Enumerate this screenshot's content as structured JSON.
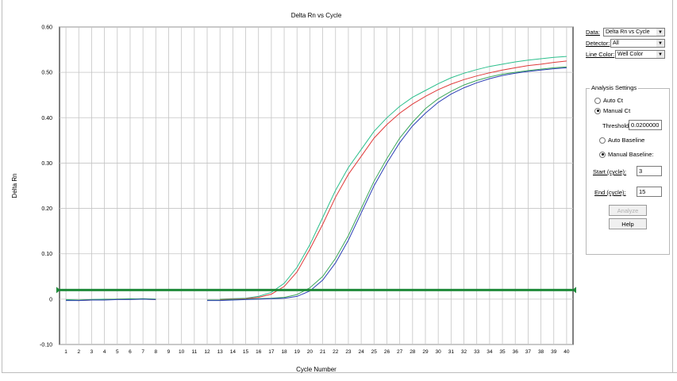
{
  "panel": {
    "data_label": "Data:",
    "data_value": "Delta Rn vs Cycle",
    "detector_label": "Detector:",
    "detector_value": "All",
    "line_color_label": "Line Color:",
    "line_color_value": "Well Color",
    "analysis": {
      "title": "Analysis Settings",
      "auto_ct": "Auto Ct",
      "manual_ct": "Manual Ct",
      "ct_mode": "manual",
      "threshold_label": "Threshold:",
      "threshold_value": "0.0200000",
      "auto_baseline": "Auto Baseline",
      "manual_baseline": "Manual Baseline:",
      "baseline_mode": "manual",
      "start_label": "Start (cycle):",
      "start_value": "3",
      "end_label": "End (cycle):",
      "end_value": "15",
      "analyze_label": "Analyze",
      "analyze_enabled": false,
      "help_label": "Help"
    }
  },
  "chart_data": {
    "type": "line",
    "title": "Delta Rn vs Cycle",
    "xlabel": "Cycle Number",
    "ylabel": "Delta Rn",
    "xlim": [
      0.5,
      40.5
    ],
    "ylim": [
      -0.1,
      0.6
    ],
    "x_ticks": [
      "1",
      "2",
      "3",
      "4",
      "5",
      "6",
      "7",
      "8",
      "9",
      "10",
      "11",
      "12",
      "13",
      "14",
      "15",
      "16",
      "17",
      "18",
      "19",
      "20",
      "21",
      "22",
      "23",
      "24",
      "25",
      "26",
      "27",
      "28",
      "29",
      "30",
      "31",
      "32",
      "33",
      "34",
      "35",
      "36",
      "37",
      "38",
      "39",
      "40"
    ],
    "y_ticks": [
      {
        "value": 0.6,
        "label": "0.60"
      },
      {
        "value": 0.5,
        "label": "0.50"
      },
      {
        "value": 0.4,
        "label": "0.40"
      },
      {
        "value": 0.3,
        "label": "0.30"
      },
      {
        "value": 0.2,
        "label": "0.20"
      },
      {
        "value": 0.1,
        "label": "0.10"
      },
      {
        "value": 0.0,
        "label": "0"
      },
      {
        "value": -0.1,
        "label": "-0.10"
      }
    ],
    "grid": true,
    "threshold": {
      "value": 0.02,
      "color": "#1f8a3a"
    },
    "x": [
      1,
      2,
      3,
      4,
      5,
      6,
      7,
      8,
      9,
      10,
      11,
      12,
      13,
      14,
      15,
      16,
      17,
      18,
      19,
      20,
      21,
      22,
      23,
      24,
      25,
      26,
      27,
      28,
      29,
      30,
      31,
      32,
      33,
      34,
      35,
      36,
      37,
      38,
      39,
      40
    ],
    "series": [
      {
        "color": "#2bbf8c",
        "values": [
          -0.001,
          -0.002,
          -0.001,
          0.0,
          0.0,
          0.001,
          0.0,
          0.0,
          null,
          null,
          null,
          null,
          0.0,
          0.001,
          0.002,
          0.006,
          0.015,
          0.035,
          0.07,
          0.12,
          0.18,
          0.24,
          0.29,
          0.33,
          0.37,
          0.4,
          0.425,
          0.445,
          0.46,
          0.475,
          0.488,
          0.498,
          0.506,
          0.513,
          0.518,
          0.523,
          0.527,
          0.53,
          0.533,
          0.535
        ]
      },
      {
        "color": "#e03a3a",
        "values": [
          -0.002,
          -0.003,
          -0.002,
          -0.001,
          0.0,
          0.0,
          0.0,
          -0.001,
          null,
          null,
          null,
          null,
          -0.001,
          0.0,
          0.001,
          0.004,
          0.011,
          0.028,
          0.06,
          0.11,
          0.165,
          0.225,
          0.275,
          0.315,
          0.355,
          0.385,
          0.41,
          0.43,
          0.447,
          0.462,
          0.474,
          0.484,
          0.492,
          0.499,
          0.505,
          0.51,
          0.515,
          0.518,
          0.522,
          0.525
        ]
      },
      {
        "color": "#3da85a",
        "values": [
          -0.002,
          -0.002,
          -0.001,
          -0.001,
          0.0,
          0.0,
          0.001,
          0.0,
          null,
          null,
          null,
          -0.002,
          -0.002,
          -0.001,
          0.0,
          0.001,
          0.002,
          0.004,
          0.01,
          0.025,
          0.05,
          0.09,
          0.14,
          0.2,
          0.26,
          0.31,
          0.355,
          0.39,
          0.42,
          0.442,
          0.458,
          0.472,
          0.482,
          0.49,
          0.496,
          0.5,
          0.504,
          0.507,
          0.51,
          0.512
        ]
      },
      {
        "color": "#2c3fb5",
        "values": [
          -0.003,
          -0.003,
          -0.002,
          -0.002,
          -0.001,
          -0.001,
          0.0,
          -0.001,
          null,
          null,
          null,
          -0.003,
          -0.003,
          -0.002,
          -0.001,
          0.0,
          0.001,
          0.002,
          0.006,
          0.018,
          0.042,
          0.08,
          0.13,
          0.19,
          0.25,
          0.3,
          0.345,
          0.382,
          0.41,
          0.434,
          0.452,
          0.466,
          0.477,
          0.486,
          0.493,
          0.498,
          0.502,
          0.505,
          0.508,
          0.51
        ]
      }
    ]
  }
}
